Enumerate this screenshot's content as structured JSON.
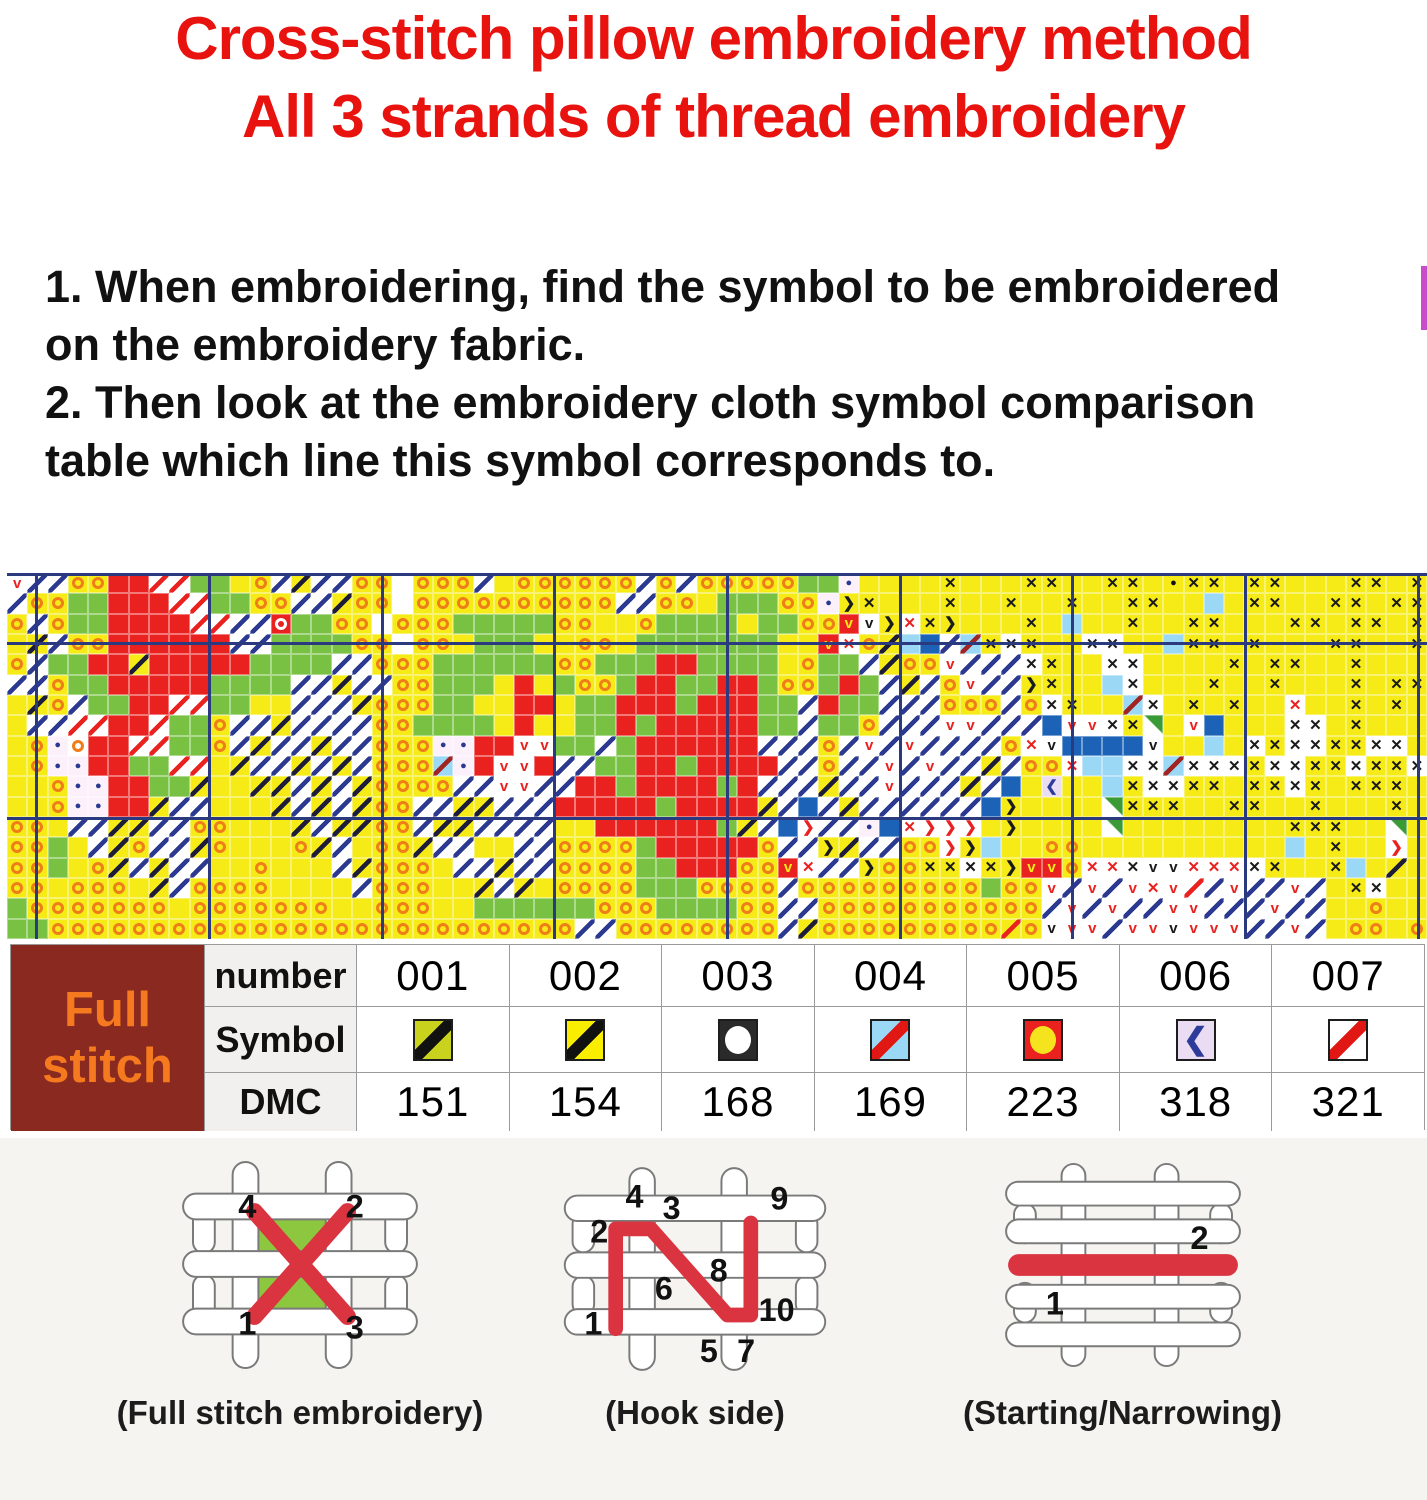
{
  "title": {
    "line1": "Cross-stitch pillow embroidery method",
    "line2": "All 3 strands of thread embroidery",
    "color": "#e8120f"
  },
  "instructions": {
    "line1": "1. When embroidering, find the symbol to be embroidered",
    "line2": "on the embroidery fabric.",
    "line3": "2. Then look at the embroidery cloth symbol comparison",
    "line4": "table which line this symbol corresponds to."
  },
  "pattern_chart": {
    "line_color": "#2b3a7e",
    "thick_v": [
      28,
      201,
      374,
      546,
      719,
      892,
      1064,
      1237,
      1410
    ],
    "thick_h": [
      0,
      69,
      244
    ],
    "legend": {
      " ": {
        "bg": "#ffffff"
      },
      "y": {
        "bg": "#f6eb16"
      },
      "g": {
        "bg": "#79c143"
      },
      "r": {
        "bg": "#e9211f"
      },
      "B": {
        "bg": "#1c63b7"
      },
      "s": {
        "bg": "#9ad8f5"
      },
      "o": {
        "bg": "#f6eb16",
        "ring": "#ef7d1a"
      },
      "O": {
        "bg": "#ffffff",
        "ring": "#ef7d1a"
      },
      "w": {
        "bg": "#e9211f",
        "ring": "#ffffff"
      },
      "b": {
        "bg": "#ffffff",
        "slash": "#2b3990"
      },
      "c": {
        "bg": "#ffffff",
        "slash": "#e9211f"
      },
      "k": {
        "bg": "#f6eb16",
        "slash": "#1d1d3a"
      },
      "q": {
        "bg": "#f6eb16",
        "slash": "#e9211f"
      },
      "t": {
        "bg": "#9ad8f5",
        "slash": "#a02522"
      },
      "x": {
        "bg": "#f6eb16",
        "glyph": "✕",
        "color": "#1a1a1a"
      },
      "X": {
        "bg": "#ffffff",
        "glyph": "✕",
        "color": "#1a1a1a"
      },
      "R": {
        "bg": "#ffffff",
        "glyph": "✕",
        "color": "#e9211f"
      },
      "v": {
        "bg": "#ffffff",
        "glyph": "v",
        "color": "#e9211f"
      },
      "u": {
        "bg": "#ffffff",
        "glyph": "v",
        "color": "#1a1a1a"
      },
      "V": {
        "bg": "#e9211f",
        "glyph": "v",
        "color": "#f6eb16"
      },
      "d": {
        "bg": "#fcf0fb",
        "glyph": "●",
        "color": "#2b3990",
        "small": true
      },
      "D": {
        "bg": "#f6eb16",
        "glyph": "●",
        "color": "#111111",
        "small": true
      },
      ">": {
        "bg": "#f6eb16",
        "glyph": "❯",
        "color": "#1a1a1a"
      },
      ")": {
        "bg": "#ffffff",
        "glyph": "❯",
        "color": "#e9211f"
      },
      "<": {
        "bg": "#eadcf2",
        "glyph": "❮",
        "color": "#2d3b9a"
      },
      "n": {
        "bg": "#ffffff",
        "corner": "#3a9a35"
      }
    },
    "rows": [
      "vbboorrccggyobkbboo ooobyooooooboboooooggdyyyyxyyyxxyyxxyDxxyxxyyyxxyx",
      "booggrrrccggoobbkoo oooooooooobbooygggood>xyyyxyyxyyxyyxxyysyxxyyxxyxx",
      "oboggrrrrccbbwggoo ooogggggooyyoggggyggooVu>Rx>yyyxysyyxyyxxyyyxxyxxyx",
      "ykboorrrrrrbbggggoo ooygggyyooygggggggyyVRoksBbtxXxyyXXyysxxyxyyyxxyyx",
      "obggrrkrrrrrggggbboooggggggoogggrrggggyoggbkoovbbbXxyyXXyyyyxyxxyyxyyy",
      "bboggrrrrrggggbbkbboogggyrygoogrrggrrgoogrgbkbovbb>xyysXyyyxyyxyyyxyxx",
      "ykobggrrccggyybbbkoooggyyrryggrrrgrrrggbrggbbboooboXxyytXyxyxyyRyyxyxy",
      "ybbccrrcggobbkbbbbooggggyryyggrgrrrrrggbggobbbvvbbbBvvXxnyvByyyXXyxyyy",
      "yodOrrccggobkbbkbboooddrrvvggbgrrrrrrbbbobvbvbbbboRuBBBBuyysyXxXXxxXXy",
      "yoddrrggccykbbkbkboootdrvvrbbggrrgrrrrbbobbvbvbbkbooRssXXtXXXxXXxxXxxX",
      "yyoddrrggkyykkbkbkoooobbvvbbrrgrrrrgrbbbkbbvbbbkbBy<yysxXXxxyxxXxyxxxy",
      "yyoddrrkbbyyykbkbkoobbkkbbbrrrrrgrrrrkbBbkbbbbbbB>yyyynxxxyyxxyyxyyyxy",
      "ooybbkkbbooyyykbkkoobkkbbbbyyrrrrrrgkbB)bbdBR)))y>yyyynyyyyyyyyxxxyyny",
      "oogybkobbkoyyyokbyookbbyybboooogrrrrrobb>kbboo)>syyooyyyyyyyyyysyxyy)y",
      "oogyokbkbbyyoyyybkoooybbkbbooooggrrrooVRbb>ooxxXx>VVoRRXuuRRRXxyyxsyky",
      "ooyoooykbooooyyyyboooyykbkyoooogggoooobooooooooogoovbvbvRvcbvbbvbyxXyy",
      "goooooooyoooooooyyoooyyggggggoooggggoobbooooooooooobvbvbbvvbbbvbbyyoyy",
      "ggoooooooooooooooooooooooooobboooooooobkoooooooooqouvvbvvuvvvbbvbyooyo"
    ]
  },
  "symbol_table": {
    "label_line1": "Full",
    "label_line2": "stitch",
    "label_bg": "#8a291f",
    "label_color": "#f4791f",
    "row_headers": [
      "number",
      "Symbol",
      "DMC"
    ],
    "columns": [
      {
        "number": "001",
        "dmc": "151",
        "symbol": {
          "bg": "#c9d21c",
          "slash": "#111111"
        }
      },
      {
        "number": "002",
        "dmc": "154",
        "symbol": {
          "bg": "#f9ee00",
          "slash": "#111111"
        }
      },
      {
        "number": "003",
        "dmc": "168",
        "symbol": {
          "bg": "#2a2a2a",
          "circle": "#ffffff"
        }
      },
      {
        "number": "004",
        "dmc": "169",
        "symbol": {
          "bg": "#9ad8f5",
          "slash": "#e01713"
        }
      },
      {
        "number": "005",
        "dmc": "223",
        "symbol": {
          "bg": "#e9211f",
          "circle": "#f5e31d"
        }
      },
      {
        "number": "006",
        "dmc": "318",
        "symbol": {
          "bg": "#eadcf2",
          "glyph": "❮",
          "glyph_color": "#2d3b9a"
        }
      },
      {
        "number": "007",
        "dmc": "321",
        "symbol": {
          "bg": "#ffffff",
          "slash": "#e01713"
        }
      }
    ]
  },
  "diagrams": {
    "stitch_color": "#d93440",
    "full_stitch": {
      "caption": "(Full stitch embroidery)",
      "numbers": {
        "n4": "4",
        "n2": "2",
        "n1": "1",
        "n3": "3"
      }
    },
    "hook_side": {
      "caption": "(Hook side)",
      "numbers": {
        "n2": "2",
        "n4": "4",
        "n3": "3",
        "n9": "9",
        "n6": "6",
        "n8": "8",
        "n1": "1",
        "n5": "5",
        "n7": "7",
        "n10": "10"
      }
    },
    "starting": {
      "caption": "(Starting/Narrowing)",
      "numbers": {
        "n1": "1",
        "n2": "2"
      }
    }
  }
}
